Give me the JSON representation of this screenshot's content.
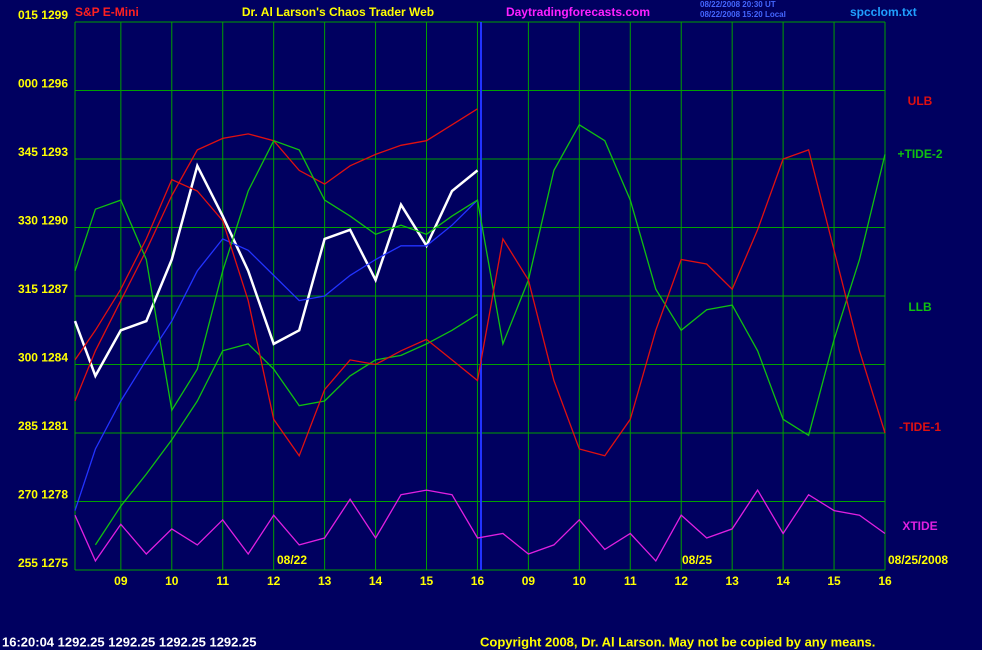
{
  "chart_data": {
    "type": "line",
    "title": "Dr. Al Larson's Chaos Trader Web",
    "annotations": [
      "S&P E-Mini",
      "Daytradingforecasts.com",
      "08/22/2008 20:30 UT",
      "08/22/2008 15:20 Local",
      "spcclom.txt",
      "08/22",
      "08/25",
      "08/25/2008",
      "16:20:04  1292.25  1292.25  1292.25  1292.25",
      "Copyright 2008, Dr. Al Larson. May not be copied by any means."
    ],
    "x": [
      0.1,
      0.5,
      1,
      1.5,
      2,
      2.5,
      3,
      3.5,
      4,
      4.5,
      5,
      5.5,
      6,
      6.5,
      7,
      7.5,
      8,
      8.5,
      9,
      9.5,
      10,
      10.5,
      11,
      11.5,
      12,
      12.5,
      13,
      13.5,
      14,
      14.5,
      15,
      15.5,
      16
    ],
    "xlim": [
      0.1,
      16
    ],
    "xticks": [
      {
        "value": 1,
        "label": "09"
      },
      {
        "value": 2,
        "label": "10"
      },
      {
        "value": 3,
        "label": "11"
      },
      {
        "value": 4,
        "label": "12"
      },
      {
        "value": 5,
        "label": "13"
      },
      {
        "value": 6,
        "label": "14"
      },
      {
        "value": 7,
        "label": "15"
      },
      {
        "value": 8,
        "label": "16"
      },
      {
        "value": 9,
        "label": "09"
      },
      {
        "value": 10,
        "label": "10"
      },
      {
        "value": 11,
        "label": "11"
      },
      {
        "value": 12,
        "label": "12"
      },
      {
        "value": 13,
        "label": "13"
      },
      {
        "value": 14,
        "label": "14"
      },
      {
        "value": 15,
        "label": "15"
      },
      {
        "value": 16,
        "label": "16"
      }
    ],
    "ylim": [
      1275,
      1299
    ],
    "yticks": [
      {
        "value": 1299,
        "label": "015 1299"
      },
      {
        "value": 1296,
        "label": "000 1296"
      },
      {
        "value": 1293,
        "label": "345 1293"
      },
      {
        "value": 1290,
        "label": "330 1290"
      },
      {
        "value": 1287,
        "label": "315 1287"
      },
      {
        "value": 1284,
        "label": "300 1284"
      },
      {
        "value": 1281,
        "label": "285 1281"
      },
      {
        "value": 1278,
        "label": "270 1278"
      },
      {
        "value": 1275,
        "label": "255 1275"
      }
    ],
    "grid": true,
    "series": [
      {
        "color": "#ffffff",
        "values": [
          1285.9,
          1283.5,
          1285.5,
          1285.9,
          1288.6,
          1292.7,
          1290.5,
          1288.1,
          1284.9,
          1285.5,
          1289.5,
          1289.9,
          1287.7,
          1291.0,
          1289.2,
          1291.6,
          1292.5,
          null,
          null,
          null,
          null,
          null,
          null,
          null,
          null,
          null,
          null,
          null,
          null,
          null,
          null,
          null,
          null
        ]
      },
      {
        "color": "#2233ff",
        "values": [
          1277.6,
          1280.3,
          1282.4,
          1284.2,
          1285.9,
          1288.1,
          1289.5,
          1289.0,
          1287.9,
          1286.8,
          1287.0,
          1287.9,
          1288.6,
          1289.2,
          1289.2,
          1290.1,
          1291.2,
          null,
          null,
          null,
          null,
          null,
          null,
          null,
          null,
          null,
          null,
          null,
          null,
          null,
          null,
          null,
          null
        ]
      },
      {
        "name": "ULB",
        "color": "#e01010",
        "values": [
          1282.4,
          1284.6,
          1286.8,
          1289.0,
          1291.4,
          1293.4,
          1293.9,
          1294.1,
          1293.8,
          1292.5,
          1291.9,
          1292.7,
          1293.2,
          1293.6,
          1293.8,
          1294.5,
          1295.2,
          null,
          null,
          null,
          null,
          null,
          null,
          null,
          null,
          null,
          null,
          null,
          null,
          null,
          null,
          null,
          null
        ]
      },
      {
        "name": "+TIDE-2",
        "color": "#10c010",
        "values": [
          1288.1,
          1290.8,
          1291.2,
          1288.6,
          1282.0,
          1283.8,
          1288.1,
          1291.6,
          1293.8,
          1293.4,
          1291.2,
          1290.5,
          1289.7,
          1290.1,
          1289.7,
          1290.5,
          1291.2,
          1284.9,
          1287.7,
          1292.5,
          1294.5,
          1293.8,
          1291.2,
          1287.3,
          1285.5,
          1286.4,
          1286.6,
          1284.6,
          1281.6,
          1280.9,
          1285.1,
          1288.6,
          1293.2
        ]
      },
      {
        "name": "LLB",
        "color": "#10c010",
        "values": [
          null,
          1276.1,
          1277.8,
          1279.2,
          1280.7,
          1282.4,
          1284.6,
          1284.9,
          1283.8,
          1282.2,
          1282.4,
          1283.5,
          1284.2,
          1284.4,
          1284.9,
          1285.5,
          1286.2,
          null,
          null,
          null,
          null,
          null,
          null,
          null,
          null,
          null,
          null,
          null,
          null,
          null,
          null,
          null,
          null
        ]
      },
      {
        "name": "-TIDE-1",
        "color": "#e01010",
        "values": [
          1284.2,
          1285.5,
          1287.3,
          1289.5,
          1292.1,
          1291.6,
          1290.3,
          1286.8,
          1281.6,
          1280.0,
          1282.9,
          1284.2,
          1284.0,
          1284.6,
          1285.1,
          1284.2,
          1283.3,
          1289.5,
          1287.7,
          1283.3,
          1280.3,
          1280.0,
          1281.6,
          1285.5,
          1288.6,
          1288.4,
          1287.3,
          1289.9,
          1293.0,
          1293.4,
          1289.0,
          1284.6,
          1281.0
        ]
      },
      {
        "name": "XTIDE",
        "color": "#e020e0",
        "values": [
          1277.4,
          1275.4,
          1277.0,
          1275.7,
          1276.8,
          1276.1,
          1277.2,
          1275.7,
          1277.4,
          1276.1,
          1276.4,
          1278.1,
          1276.4,
          1278.3,
          1278.5,
          1278.3,
          1276.4,
          1276.6,
          1275.7,
          1276.1,
          1277.2,
          1275.9,
          1276.6,
          1275.4,
          1277.4,
          1276.4,
          1276.8,
          1278.5,
          1276.6,
          1278.3,
          1277.6,
          1277.4,
          1276.6
        ]
      }
    ]
  }
}
